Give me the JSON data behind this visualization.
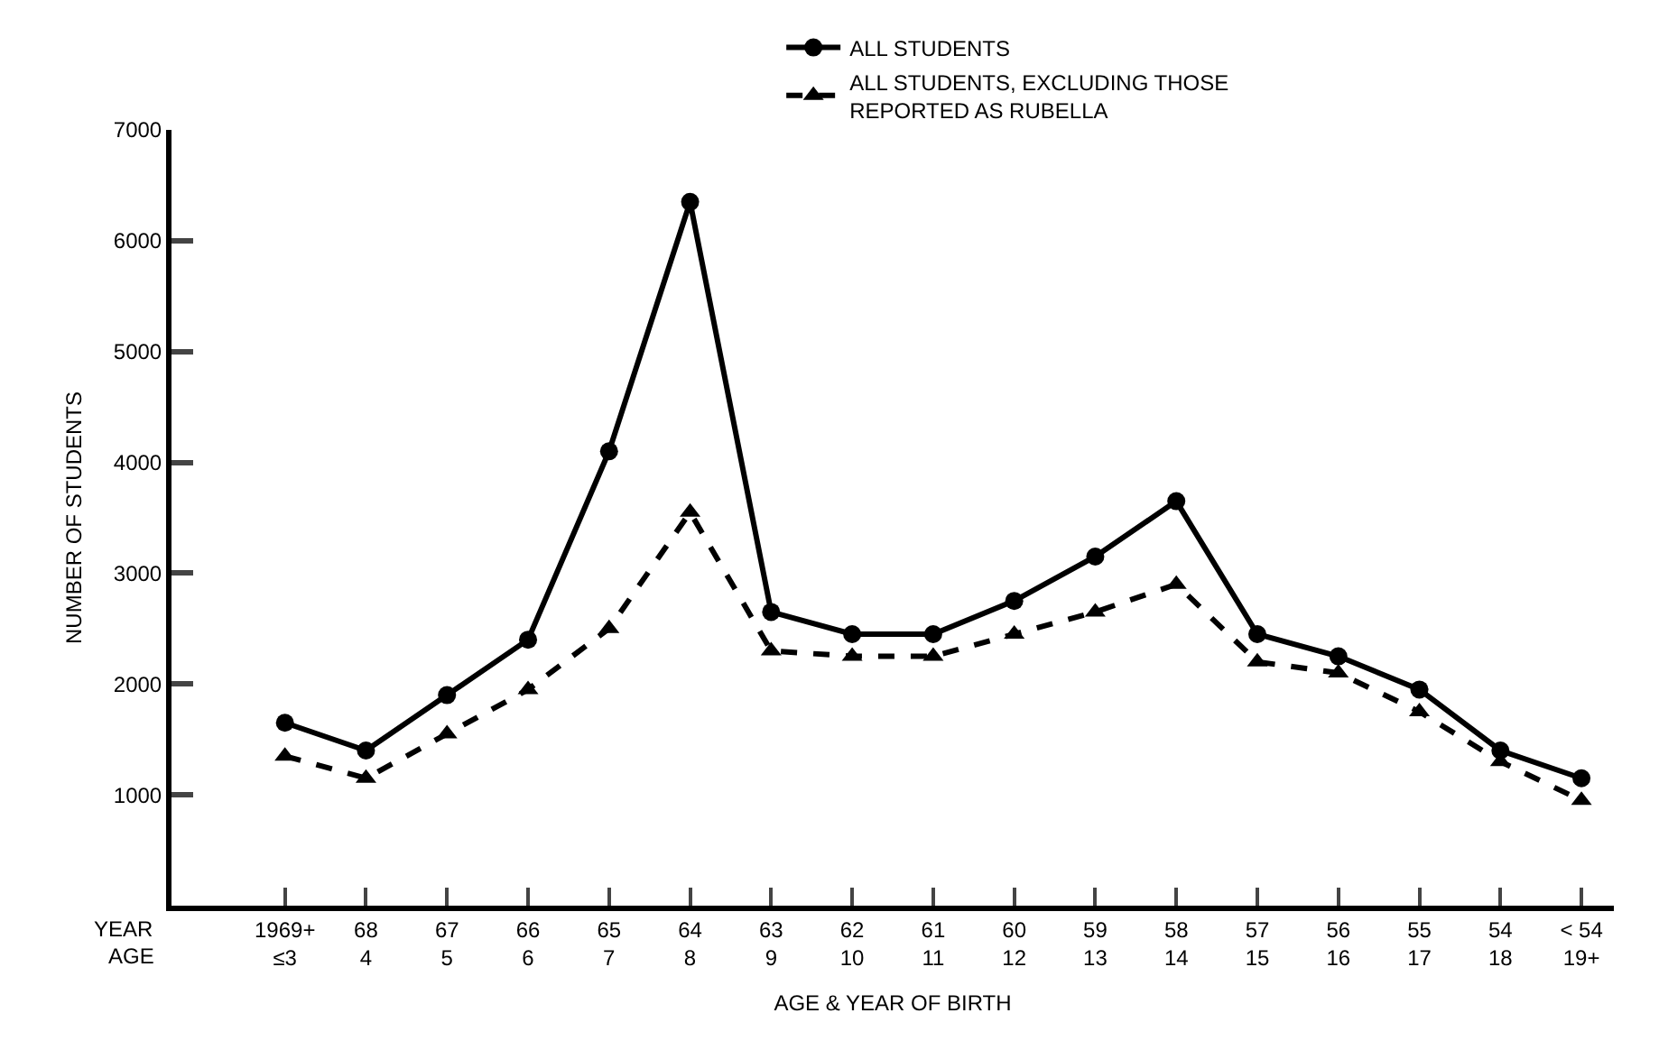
{
  "chart_data": {
    "type": "line",
    "xlabel": "AGE & YEAR OF BIRTH",
    "ylabel": "NUMBER OF STUDENTS",
    "categories": [
      "1969+\n≤3",
      "68\n4",
      "67\n5",
      "66\n6",
      "65\n7",
      "64\n8",
      "63\n9",
      "62\n10",
      "61\n11",
      "60\n12",
      "59\n13",
      "58\n14",
      "57\n15",
      "56\n16",
      "55\n17",
      "54\n18",
      "< 54\n19+"
    ],
    "series": [
      {
        "name": "ALL STUDENTS",
        "color": "#000000",
        "marker": "circle",
        "line_style": "solid",
        "values": [
          1650,
          1400,
          1900,
          2400,
          4100,
          6350,
          2650,
          2450,
          2450,
          2750,
          3150,
          3650,
          2450,
          2250,
          1950,
          1400,
          1150
        ]
      },
      {
        "name": "ALL STUDENTS, EXCLUDING THOSE\nREPORTED AS RUBELLA",
        "color": "#000000",
        "marker": "triangle",
        "line_style": "dashed",
        "values": [
          1350,
          1150,
          1550,
          1950,
          2500,
          3550,
          2300,
          2250,
          2250,
          2450,
          2650,
          2900,
          2200,
          2100,
          1750,
          1300,
          950
        ]
      }
    ],
    "ylim": [
      0,
      7000
    ],
    "yticks": [
      1000,
      2000,
      3000,
      4000,
      5000,
      6000,
      7000
    ],
    "legend": "top",
    "annotations": [
      "YEAR",
      "AGE"
    ]
  }
}
